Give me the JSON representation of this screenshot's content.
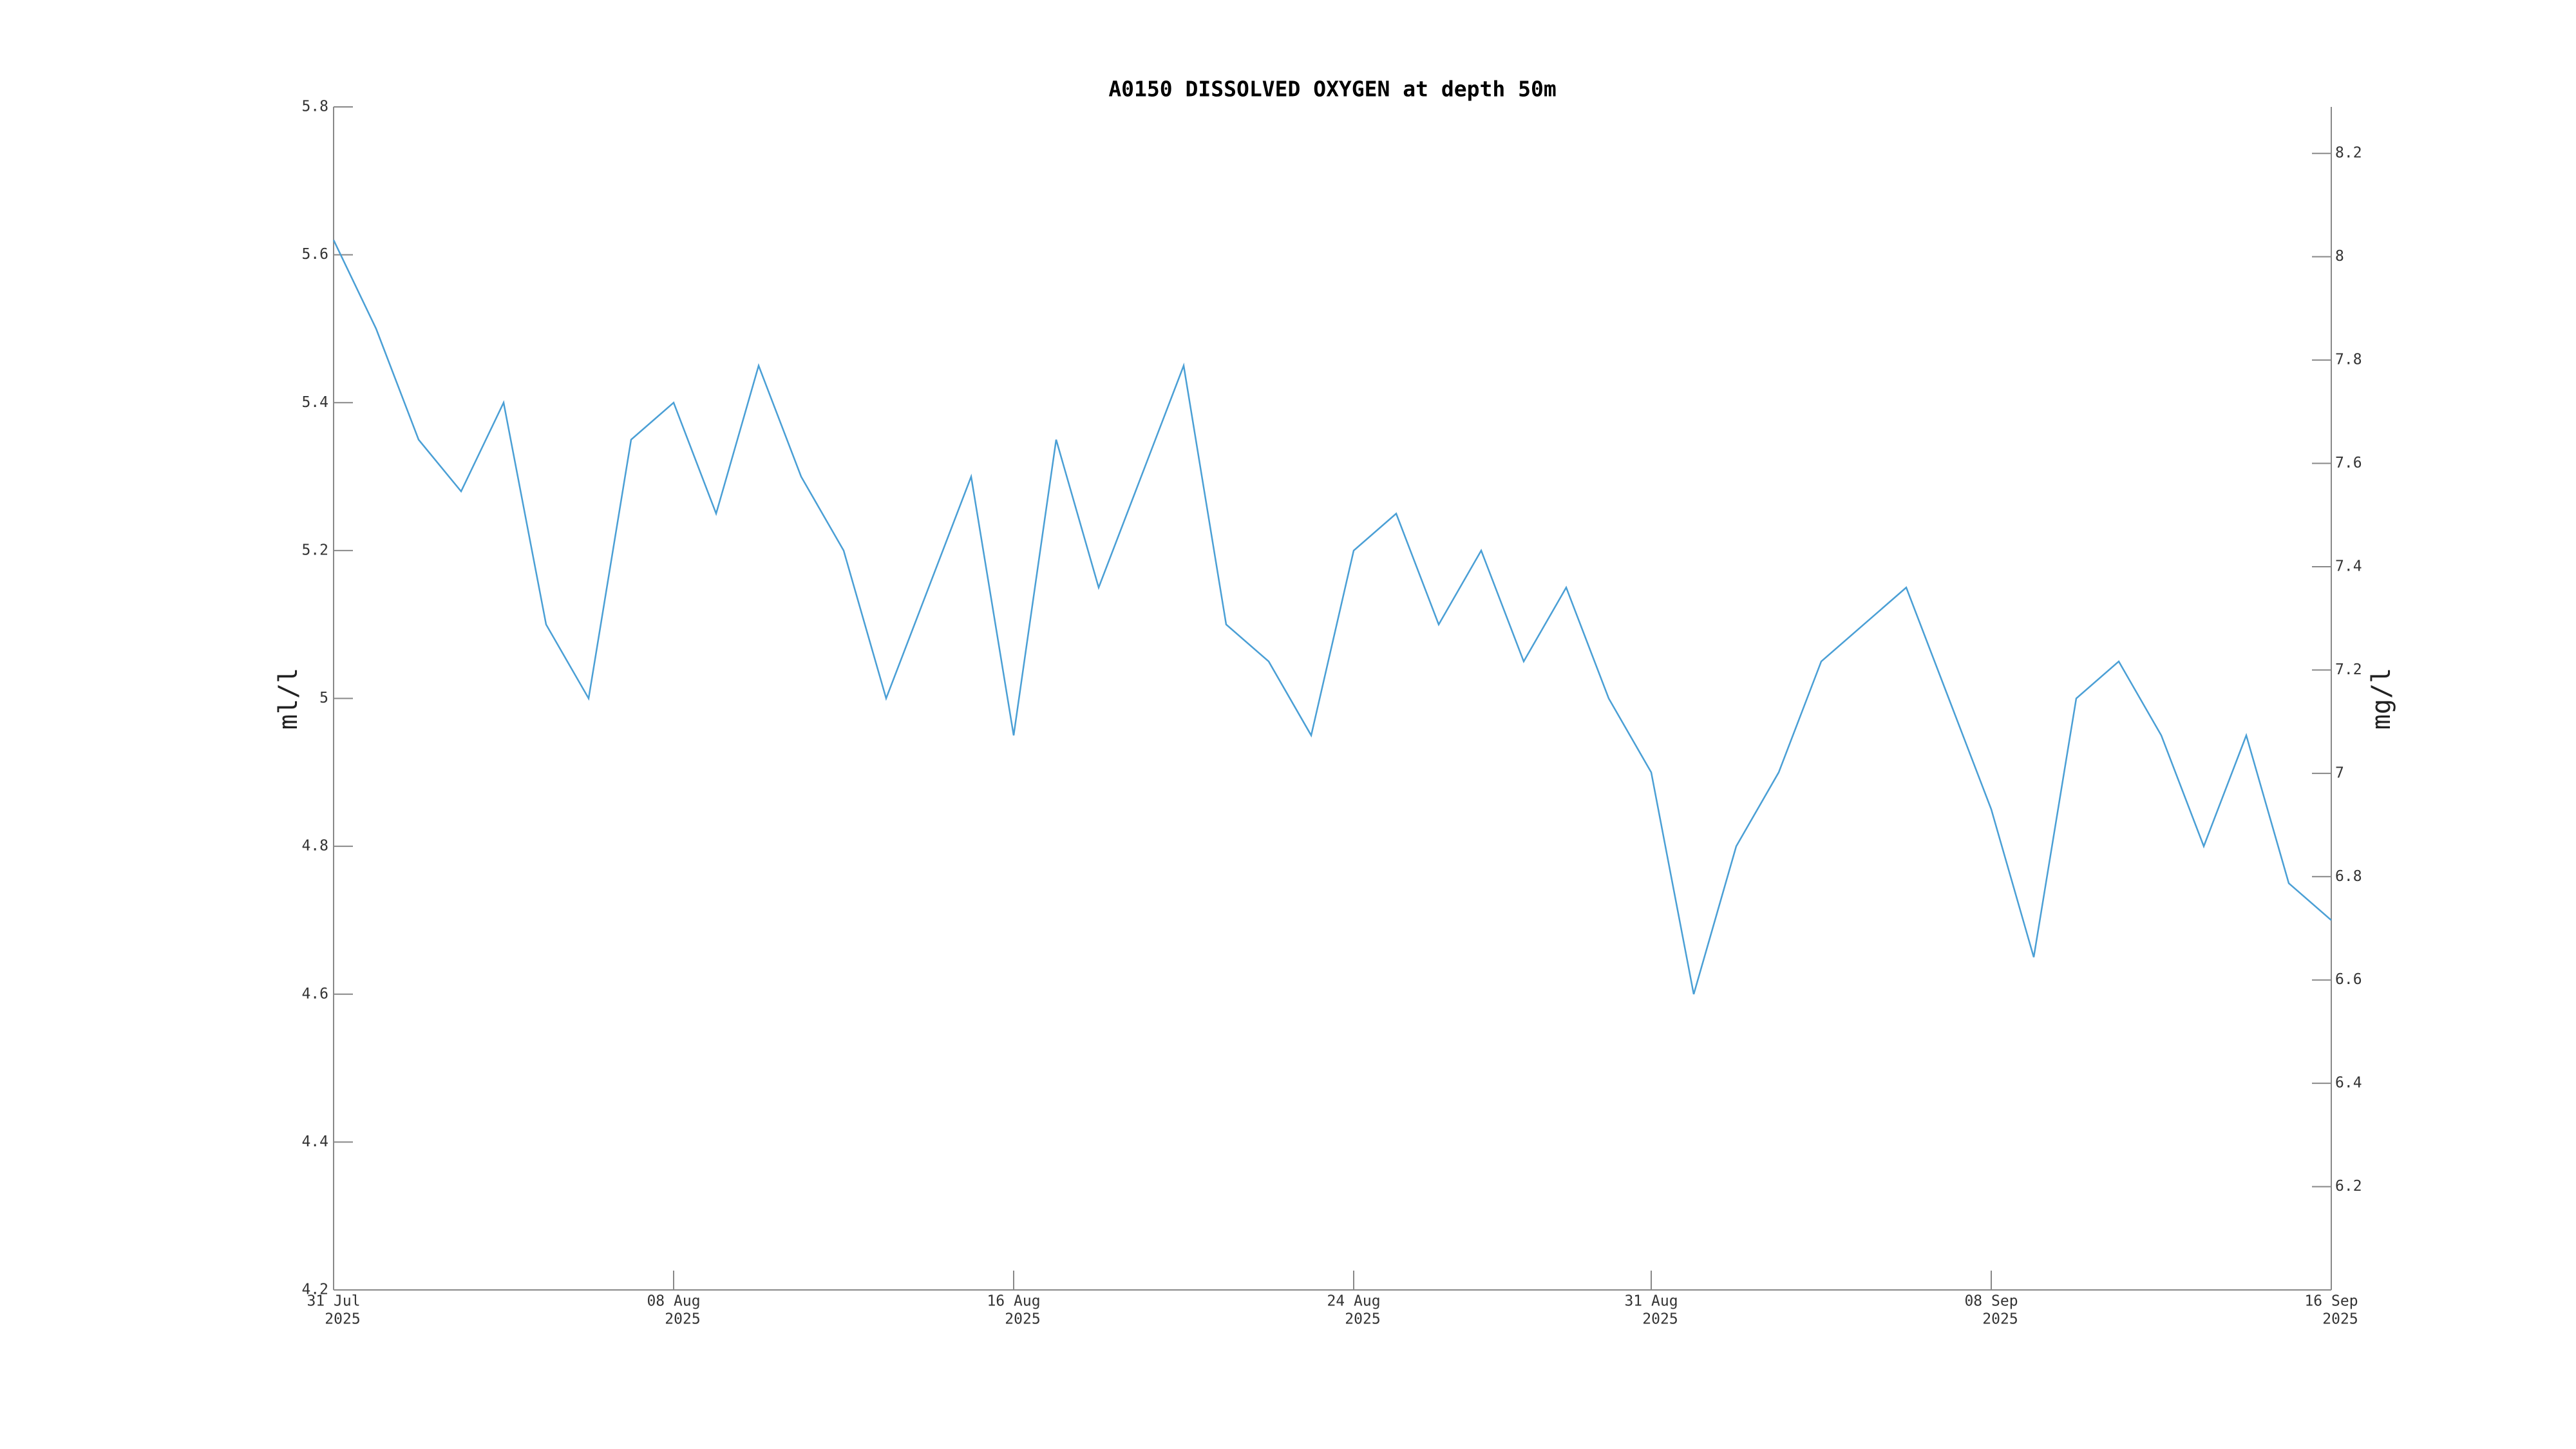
{
  "chart_data": {
    "type": "line",
    "title": "A0150 DISSOLVED OXYGEN at depth 50m",
    "ylabel": "ml/l",
    "y2label": "mg/l",
    "color": "#4a9fd5",
    "x": [
      "2025-07-31",
      "2025-08-01",
      "2025-08-02",
      "2025-08-03",
      "2025-08-04",
      "2025-08-05",
      "2025-08-06",
      "2025-08-07",
      "2025-08-08",
      "2025-08-09",
      "2025-08-10",
      "2025-08-11",
      "2025-08-12",
      "2025-08-13",
      "2025-08-14",
      "2025-08-15",
      "2025-08-16",
      "2025-08-17",
      "2025-08-18",
      "2025-08-19",
      "2025-08-20",
      "2025-08-21",
      "2025-08-22",
      "2025-08-23",
      "2025-08-24",
      "2025-08-25",
      "2025-08-26",
      "2025-08-27",
      "2025-08-28",
      "2025-08-29",
      "2025-08-30",
      "2025-08-31",
      "2025-09-01",
      "2025-09-02",
      "2025-09-03",
      "2025-09-04",
      "2025-09-05",
      "2025-09-06",
      "2025-09-07",
      "2025-09-08",
      "2025-09-09",
      "2025-09-10",
      "2025-09-11",
      "2025-09-12",
      "2025-09-13",
      "2025-09-14",
      "2025-09-15",
      "2025-09-16"
    ],
    "values": [
      5.62,
      5.5,
      5.35,
      5.28,
      5.4,
      5.1,
      5.0,
      5.35,
      5.4,
      5.25,
      5.45,
      5.3,
      5.2,
      5.0,
      5.15,
      5.3,
      4.95,
      5.35,
      5.15,
      5.3,
      5.45,
      5.1,
      5.05,
      4.95,
      5.2,
      5.25,
      5.1,
      5.2,
      5.05,
      5.15,
      5.0,
      4.9,
      4.6,
      4.8,
      4.9,
      5.05,
      5.1,
      5.15,
      5.0,
      4.85,
      4.65,
      5.0,
      5.05,
      4.95,
      4.8,
      4.95,
      4.75,
      4.7
    ],
    "xlim": [
      "2025-07-31",
      "2025-09-16"
    ],
    "xticks": [
      {
        "value": "2025-07-31",
        "label": [
          "31 Jul",
          "2025"
        ]
      },
      {
        "value": "2025-08-08",
        "label": [
          "08 Aug",
          "2025"
        ]
      },
      {
        "value": "2025-08-16",
        "label": [
          "16 Aug",
          "2025"
        ]
      },
      {
        "value": "2025-08-24",
        "label": [
          "24 Aug",
          "2025"
        ]
      },
      {
        "value": "2025-08-31",
        "label": [
          "31 Aug",
          "2025"
        ]
      },
      {
        "value": "2025-09-08",
        "label": [
          "08 Sep",
          "2025"
        ]
      },
      {
        "value": "2025-09-16",
        "label": [
          "16 Sep",
          "2025"
        ]
      }
    ],
    "ylim": [
      4.2,
      5.8
    ],
    "yticks": [
      4.2,
      4.4,
      4.6,
      4.8,
      5,
      5.2,
      5.4,
      5.6,
      5.8
    ],
    "y2lim": [
      6.0,
      8.29
    ],
    "y2ticks": [
      6.2,
      6.4,
      6.6,
      6.8,
      7,
      7.2,
      7.4,
      7.6,
      7.8,
      8,
      8.2
    ]
  }
}
